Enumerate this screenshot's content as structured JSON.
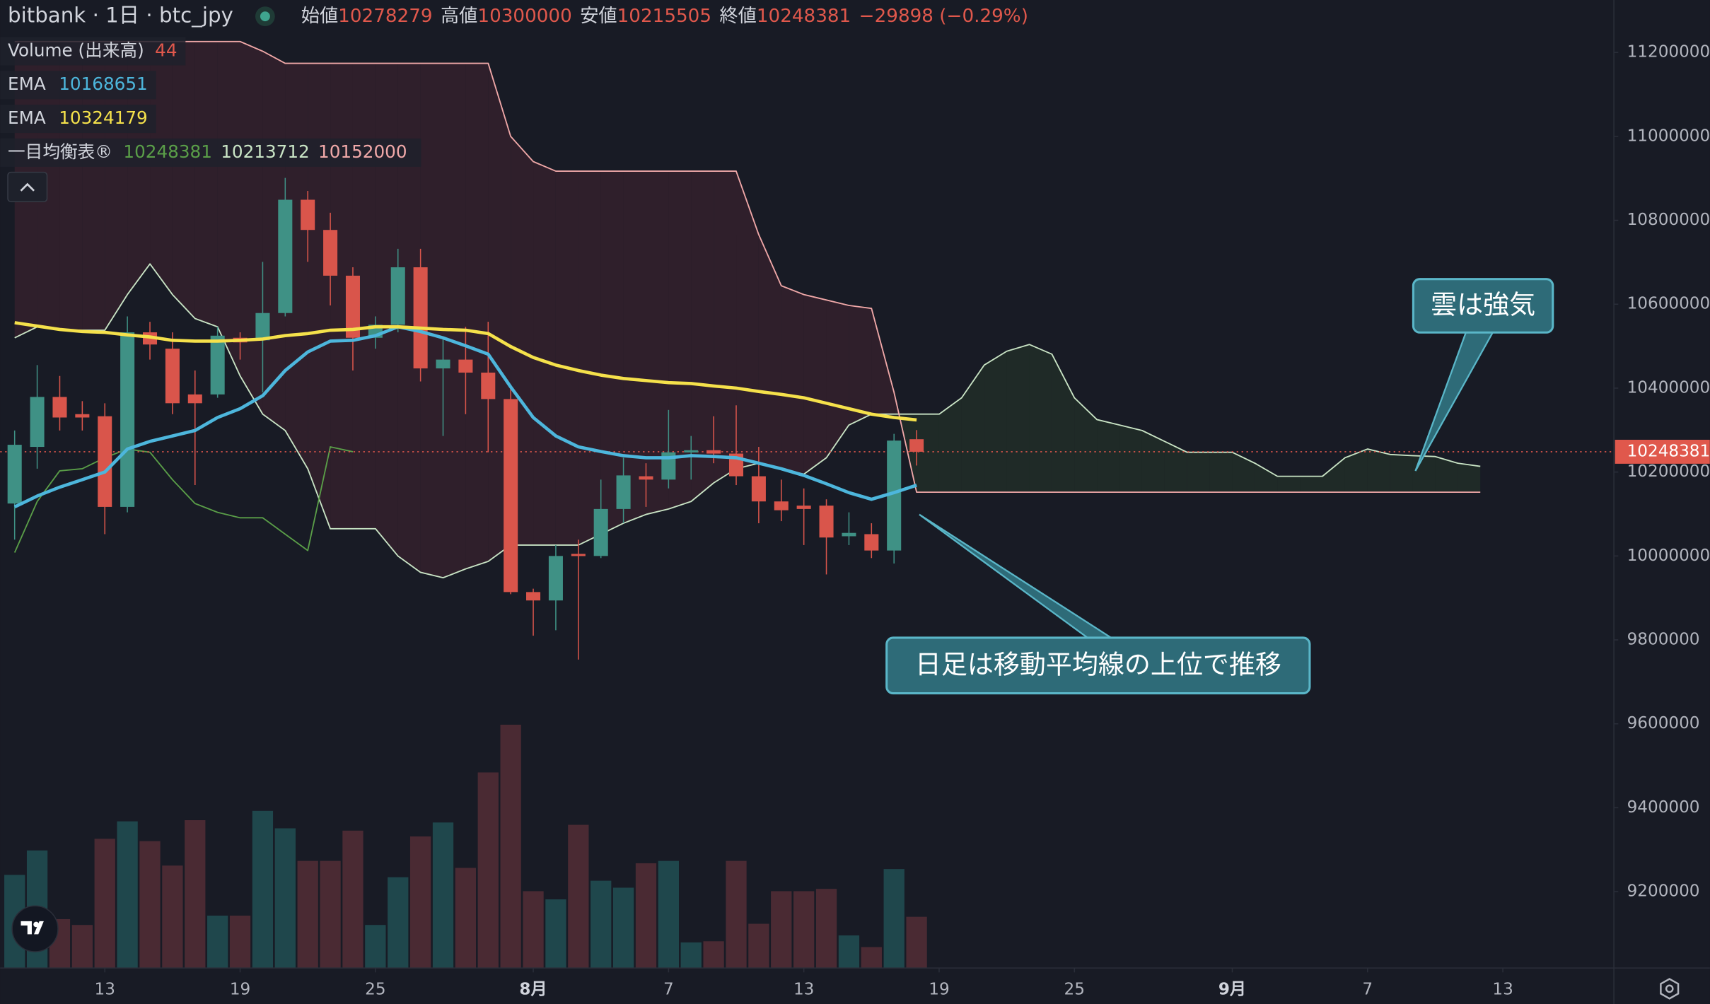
{
  "chart_data": {
    "type": "candlestick",
    "title": "bitbank · 1日 · btc_jpy",
    "ohlc_labels": {
      "open": "始値",
      "high": "高値",
      "low": "安値",
      "close": "終値"
    },
    "change": "−29898 (−0.29%)",
    "x": [
      "07-09",
      "07-10",
      "07-11",
      "07-12",
      "07-13",
      "07-14",
      "07-15",
      "07-16",
      "07-17",
      "07-18",
      "07-19",
      "07-20",
      "07-21",
      "07-22",
      "07-23",
      "07-24",
      "07-25",
      "07-26",
      "07-27",
      "07-28",
      "07-29",
      "07-30",
      "07-31",
      "08-01",
      "08-02",
      "08-03",
      "08-04",
      "08-05",
      "08-06",
      "08-07",
      "08-08",
      "08-09",
      "08-10",
      "08-11",
      "08-12",
      "08-13",
      "08-14",
      "08-15",
      "08-16",
      "08-17",
      "08-18"
    ],
    "open": [
      10125000,
      10260000,
      10379000,
      10338000,
      10333000,
      10117000,
      10533000,
      10494000,
      10385000,
      10385000,
      10520000,
      10514000,
      10579000,
      10849000,
      10777000,
      10668000,
      10520000,
      10551000,
      10688000,
      10447000,
      10468000,
      10437000,
      10374000,
      9914000,
      9894000,
      10005000,
      10000000,
      10112000,
      10190000,
      10182000,
      10247000,
      10252000,
      10244000,
      10190000,
      10130000,
      10120000,
      10120000,
      10047000,
      10052000,
      10013000,
      10278279
    ],
    "high": [
      10299000,
      10455000,
      10429000,
      10369000,
      10364000,
      10571000,
      10558000,
      10533000,
      10442000,
      10546000,
      10533000,
      10701000,
      10901000,
      10870000,
      10818000,
      10688000,
      10571000,
      10732000,
      10732000,
      10520000,
      10546000,
      10558000,
      10403000,
      9922000,
      10026000,
      10039000,
      10182000,
      10234000,
      10221000,
      10348000,
      10286000,
      10333000,
      10359000,
      10260000,
      10182000,
      10161000,
      10135000,
      10104000,
      10078000,
      10291000,
      10300000
    ],
    "low": [
      10039000,
      10208000,
      10299000,
      10299000,
      10052000,
      10104000,
      10468000,
      10338000,
      10169000,
      10377000,
      10468000,
      10390000,
      10571000,
      10701000,
      10597000,
      10442000,
      10494000,
      10533000,
      10416000,
      10286000,
      10338000,
      10247000,
      9909000,
      9810000,
      9823000,
      9753000,
      9995000,
      10078000,
      10117000,
      10161000,
      10182000,
      10221000,
      10169000,
      10078000,
      10083000,
      10026000,
      9956000,
      10026000,
      9995000,
      9982000,
      10215505
    ],
    "close": [
      10265000,
      10379000,
      10330000,
      10330000,
      10117000,
      10533000,
      10504000,
      10364000,
      10364000,
      10525000,
      10509000,
      10579000,
      10849000,
      10777000,
      10668000,
      10520000,
      10551000,
      10688000,
      10447000,
      10468000,
      10437000,
      10374000,
      9914000,
      9894000,
      10000000,
      10000000,
      10112000,
      10192000,
      10182000,
      10247000,
      10252000,
      10244000,
      10190000,
      10130000,
      10109000,
      10112000,
      10044000,
      10055000,
      10013000,
      10275000,
      10248381
    ],
    "up_color": "#3f9185",
    "down_color": "#d9554b",
    "volume": {
      "name": "Volume (出来高)",
      "up_color": "#1f474c",
      "down_color": "#4a2a33",
      "values": [
        80,
        101,
        42,
        37,
        111,
        126,
        109,
        88,
        127,
        45,
        45,
        135,
        120,
        92,
        92,
        118,
        37,
        78,
        113,
        125,
        86,
        168,
        209,
        66,
        59,
        123,
        75,
        69,
        90,
        92,
        22,
        23,
        92,
        38,
        66,
        66,
        68,
        28,
        18,
        85,
        44
      ]
    },
    "series": [
      {
        "name": "EMA",
        "color": "#4db6dc",
        "values": [
          10117000,
          10143000,
          10164000,
          10182000,
          10200000,
          10255000,
          10273000,
          10286000,
          10299000,
          10330000,
          10351000,
          10382000,
          10442000,
          10486000,
          10512000,
          10514000,
          10525000,
          10546000,
          10535000,
          10520000,
          10501000,
          10481000,
          10403000,
          10330000,
          10286000,
          10260000,
          10249000,
          10239000,
          10234000,
          10234000,
          10239000,
          10237000,
          10234000,
          10221000,
          10208000,
          10192000,
          10172000,
          10151000,
          10135000,
          10151000,
          10168651
        ]
      },
      {
        "name": "EMA",
        "color": "#f5e14b",
        "values": [
          10556000,
          10548000,
          10540000,
          10535000,
          10533000,
          10527000,
          10522000,
          10514000,
          10512000,
          10512000,
          10514000,
          10517000,
          10525000,
          10530000,
          10538000,
          10540000,
          10546000,
          10546000,
          10543000,
          10540000,
          10538000,
          10530000,
          10499000,
          10473000,
          10455000,
          10442000,
          10431000,
          10423000,
          10418000,
          10413000,
          10411000,
          10405000,
          10400000,
          10392000,
          10385000,
          10377000,
          10364000,
          10351000,
          10338000,
          10330000,
          10324179
        ]
      }
    ],
    "ichimoku": {
      "name": "一目均衡表®",
      "bull_fill": "#1f2a27",
      "bear_fill": "#2f1f2b",
      "lagging": {
        "color": "#5a9e48",
        "x": [
          "07-09",
          "07-10",
          "07-11",
          "07-12",
          "07-13",
          "07-14",
          "07-15",
          "07-16",
          "07-17",
          "07-18",
          "07-19",
          "07-20",
          "07-21",
          "07-22",
          "07-23",
          "07-24"
        ],
        "values": [
          10008000,
          10130000,
          10203000,
          10208000,
          10234000,
          10255000,
          10247000,
          10182000,
          10125000,
          10104000,
          10091000,
          10091000,
          10052000,
          10013000,
          10260000,
          10248381
        ]
      },
      "x": [
        "07-09",
        "07-10",
        "07-11",
        "07-12",
        "07-13",
        "07-14",
        "07-15",
        "07-16",
        "07-17",
        "07-18",
        "07-19",
        "07-20",
        "07-21",
        "07-22",
        "07-23",
        "07-24",
        "07-25",
        "07-26",
        "07-27",
        "07-28",
        "07-29",
        "07-30",
        "07-31",
        "08-01",
        "08-02",
        "08-03",
        "08-04",
        "08-05",
        "08-06",
        "08-07",
        "08-08",
        "08-09",
        "08-10",
        "08-11",
        "08-12",
        "08-13",
        "08-14",
        "08-15",
        "08-16",
        "08-17",
        "08-18",
        "08-19",
        "08-20",
        "08-21",
        "08-22",
        "08-23",
        "08-24",
        "08-25",
        "08-26",
        "08-27",
        "08-28",
        "08-29",
        "08-30",
        "08-31",
        "09-01",
        "09-02",
        "09-03",
        "09-04",
        "09-05",
        "09-06",
        "09-07",
        "09-08",
        "09-09",
        "09-10",
        "09-11",
        "09-12"
      ],
      "span_a": {
        "color": "#c9e4c5",
        "values": [
          10520000,
          10546000,
          10538000,
          10538000,
          10538000,
          10623000,
          10696000,
          10623000,
          10566000,
          10546000,
          10429000,
          10338000,
          10299000,
          10208000,
          10065000,
          10065000,
          10065000,
          10000000,
          9961000,
          9948000,
          9969000,
          9987000,
          10026000,
          10026000,
          10026000,
          10026000,
          10052000,
          10078000,
          10099000,
          10112000,
          10130000,
          10174000,
          10208000,
          10221000,
          10208000,
          10195000,
          10234000,
          10312000,
          10338000,
          10338000,
          10338000,
          10338000,
          10377000,
          10455000,
          10488000,
          10504000,
          10481000,
          10377000,
          10325000,
          10312000,
          10299000,
          10273000,
          10247000,
          10247000,
          10247000,
          10221000,
          10190000,
          10190000,
          10190000,
          10234000,
          10255000,
          10242000,
          10239000,
          10237000,
          10221000,
          10213712
        ]
      },
      "span_b": {
        "color": "#f0a8a8",
        "values": [
          11226000,
          11226000,
          11226000,
          11226000,
          11226000,
          11226000,
          11226000,
          11226000,
          11226000,
          11226000,
          11226000,
          11203000,
          11174000,
          11174000,
          11174000,
          11174000,
          11174000,
          11174000,
          11174000,
          11174000,
          11174000,
          11174000,
          11000000,
          10940000,
          10917000,
          10917000,
          10917000,
          10917000,
          10917000,
          10917000,
          10917000,
          10917000,
          10917000,
          10766000,
          10644000,
          10623000,
          10610000,
          10597000,
          10590000,
          10390000,
          10152000,
          10152000,
          10152000,
          10152000,
          10152000,
          10152000,
          10152000,
          10152000,
          10152000,
          10152000,
          10152000,
          10152000,
          10152000,
          10152000,
          10152000,
          10152000,
          10152000,
          10152000,
          10152000,
          10152000,
          10152000,
          10152000,
          10152000,
          10152000,
          10152000,
          10152000
        ]
      }
    },
    "ylim": [
      9018000,
      11325000
    ],
    "yticks": [
      9200000,
      9400000,
      9600000,
      9800000,
      10000000,
      10200000,
      10400000,
      10600000,
      10800000,
      11000000,
      11200000
    ],
    "xticks": [
      {
        "value": "07-13",
        "label": "13"
      },
      {
        "value": "07-19",
        "label": "19"
      },
      {
        "value": "07-25",
        "label": "25"
      },
      {
        "value": "08-01",
        "label": "8月"
      },
      {
        "value": "08-07",
        "label": "7"
      },
      {
        "value": "08-13",
        "label": "13"
      },
      {
        "value": "08-19",
        "label": "19"
      },
      {
        "value": "08-25",
        "label": "25"
      },
      {
        "value": "09-01",
        "label": "9月"
      },
      {
        "value": "09-07",
        "label": "7"
      },
      {
        "value": "09-13",
        "label": "13"
      }
    ],
    "annotations": [
      {
        "text": "雲は強気"
      },
      {
        "text": "日足は移動平均線の上位で推移"
      }
    ]
  }
}
